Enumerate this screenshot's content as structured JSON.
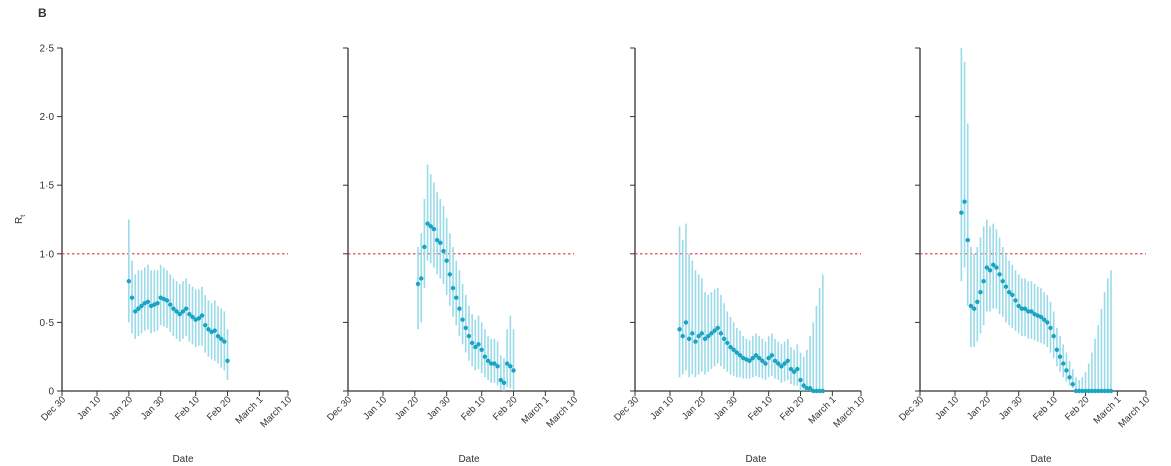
{
  "figure": {
    "panel_label": "B",
    "ylabel": "R",
    "ylabel_sub": "t",
    "xlabel": "Date",
    "colors": {
      "series": "#1aa3c2",
      "ci_band": "#99dbe8",
      "threshold": "#e2343a",
      "axis": "#333333"
    }
  },
  "chart_data": [
    {
      "type": "scatter",
      "ylim": [
        0,
        2.5
      ],
      "yticks": [
        0,
        0.5,
        1.0,
        1.5,
        2.0,
        2.5
      ],
      "ytick_labels": [
        "0",
        "0·5",
        "1·0",
        "1·5",
        "2·0",
        "2·5"
      ],
      "xticks": [
        "2019-12-30",
        "2020-01-10",
        "2020-01-20",
        "2020-01-30",
        "2020-02-10",
        "2020-02-20",
        "2020-03-01",
        "2020-03-10"
      ],
      "xtick_labels": [
        "Dec 30",
        "Jan 10",
        "Jan 20",
        "Jan 30",
        "Feb 10",
        "Feb 20",
        "March 1",
        "March 10"
      ],
      "reference_line": 1.0,
      "grid": false,
      "series": [
        {
          "x": [
            "2020-01-20",
            "2020-01-21",
            "2020-01-22",
            "2020-01-23",
            "2020-01-24",
            "2020-01-25",
            "2020-01-26",
            "2020-01-27",
            "2020-01-28",
            "2020-01-29",
            "2020-01-30",
            "2020-01-31",
            "2020-02-01",
            "2020-02-02",
            "2020-02-03",
            "2020-02-04",
            "2020-02-05",
            "2020-02-06",
            "2020-02-07",
            "2020-02-08",
            "2020-02-09",
            "2020-02-10",
            "2020-02-11",
            "2020-02-12",
            "2020-02-13",
            "2020-02-14",
            "2020-02-15",
            "2020-02-16",
            "2020-02-17",
            "2020-02-18",
            "2020-02-19",
            "2020-02-20"
          ],
          "y": [
            0.8,
            0.68,
            0.58,
            0.6,
            0.62,
            0.64,
            0.65,
            0.62,
            0.63,
            0.64,
            0.68,
            0.67,
            0.66,
            0.63,
            0.6,
            0.58,
            0.56,
            0.58,
            0.6,
            0.56,
            0.54,
            0.52,
            0.53,
            0.55,
            0.48,
            0.45,
            0.43,
            0.44,
            0.4,
            0.38,
            0.36,
            0.22
          ],
          "lower": [
            0.5,
            0.42,
            0.38,
            0.4,
            0.42,
            0.44,
            0.45,
            0.42,
            0.43,
            0.44,
            0.48,
            0.47,
            0.46,
            0.43,
            0.4,
            0.38,
            0.36,
            0.38,
            0.4,
            0.36,
            0.34,
            0.32,
            0.33,
            0.33,
            0.28,
            0.25,
            0.23,
            0.22,
            0.2,
            0.17,
            0.15,
            0.08
          ],
          "upper": [
            1.25,
            0.95,
            0.85,
            0.88,
            0.88,
            0.9,
            0.92,
            0.88,
            0.88,
            0.88,
            0.92,
            0.9,
            0.88,
            0.85,
            0.82,
            0.8,
            0.78,
            0.8,
            0.82,
            0.78,
            0.76,
            0.74,
            0.74,
            0.76,
            0.7,
            0.66,
            0.64,
            0.66,
            0.62,
            0.6,
            0.58,
            0.45
          ]
        }
      ]
    },
    {
      "type": "scatter",
      "ylim": [
        0,
        2.5
      ],
      "yticks": [
        0,
        0.5,
        1.0,
        1.5,
        2.0,
        2.5
      ],
      "xticks": [
        "2019-12-30",
        "2020-01-10",
        "2020-01-20",
        "2020-01-30",
        "2020-02-10",
        "2020-02-20",
        "2020-03-01",
        "2020-03-10"
      ],
      "xtick_labels": [
        "Dec 30",
        "Jan 10",
        "Jan 20",
        "Jan 30",
        "Feb 10",
        "Feb 20",
        "March 1",
        "March 10"
      ],
      "reference_line": 1.0,
      "grid": false,
      "series": [
        {
          "x": [
            "2020-01-21",
            "2020-01-22",
            "2020-01-23",
            "2020-01-24",
            "2020-01-25",
            "2020-01-26",
            "2020-01-27",
            "2020-01-28",
            "2020-01-29",
            "2020-01-30",
            "2020-01-31",
            "2020-02-01",
            "2020-02-02",
            "2020-02-03",
            "2020-02-04",
            "2020-02-05",
            "2020-02-06",
            "2020-02-07",
            "2020-02-08",
            "2020-02-09",
            "2020-02-10",
            "2020-02-11",
            "2020-02-12",
            "2020-02-13",
            "2020-02-14",
            "2020-02-15",
            "2020-02-16",
            "2020-02-17",
            "2020-02-18",
            "2020-02-19",
            "2020-02-20"
          ],
          "y": [
            0.78,
            0.82,
            1.05,
            1.22,
            1.2,
            1.18,
            1.1,
            1.08,
            1.02,
            0.95,
            0.85,
            0.75,
            0.68,
            0.6,
            0.52,
            0.46,
            0.4,
            0.35,
            0.32,
            0.34,
            0.3,
            0.25,
            0.22,
            0.2,
            0.2,
            0.18,
            0.08,
            0.06,
            0.2,
            0.18,
            0.15
          ],
          "lower": [
            0.45,
            0.5,
            0.75,
            0.95,
            0.93,
            0.9,
            0.85,
            0.82,
            0.78,
            0.7,
            0.62,
            0.54,
            0.48,
            0.4,
            0.34,
            0.28,
            0.22,
            0.18,
            0.15,
            0.16,
            0.13,
            0.1,
            0.08,
            0.06,
            0.06,
            0.04,
            0.01,
            0.0,
            0.03,
            0.02,
            0.01
          ],
          "upper": [
            1.05,
            1.15,
            1.4,
            1.65,
            1.58,
            1.52,
            1.45,
            1.4,
            1.35,
            1.26,
            1.15,
            1.05,
            0.95,
            0.88,
            0.78,
            0.7,
            0.62,
            0.56,
            0.52,
            0.55,
            0.5,
            0.45,
            0.4,
            0.38,
            0.38,
            0.36,
            0.26,
            0.24,
            0.45,
            0.55,
            0.45
          ]
        }
      ]
    },
    {
      "type": "scatter",
      "ylim": [
        0,
        2.5
      ],
      "yticks": [
        0,
        0.5,
        1.0,
        1.5,
        2.0,
        2.5
      ],
      "xticks": [
        "2019-12-30",
        "2020-01-10",
        "2020-01-20",
        "2020-01-30",
        "2020-02-10",
        "2020-02-20",
        "2020-03-01",
        "2020-03-10"
      ],
      "xtick_labels": [
        "Dec 30",
        "Jan 10",
        "Jan 20",
        "Jan 30",
        "Feb 10",
        "Feb 20",
        "March 1",
        "March 10"
      ],
      "reference_line": 1.0,
      "grid": false,
      "series": [
        {
          "x": [
            "2020-01-13",
            "2020-01-14",
            "2020-01-15",
            "2020-01-16",
            "2020-01-17",
            "2020-01-18",
            "2020-01-19",
            "2020-01-20",
            "2020-01-21",
            "2020-01-22",
            "2020-01-23",
            "2020-01-24",
            "2020-01-25",
            "2020-01-26",
            "2020-01-27",
            "2020-01-28",
            "2020-01-29",
            "2020-01-30",
            "2020-01-31",
            "2020-02-01",
            "2020-02-02",
            "2020-02-03",
            "2020-02-04",
            "2020-02-05",
            "2020-02-06",
            "2020-02-07",
            "2020-02-08",
            "2020-02-09",
            "2020-02-10",
            "2020-02-11",
            "2020-02-12",
            "2020-02-13",
            "2020-02-14",
            "2020-02-15",
            "2020-02-16",
            "2020-02-17",
            "2020-02-18",
            "2020-02-19",
            "2020-02-20",
            "2020-02-21",
            "2020-02-22",
            "2020-02-23",
            "2020-02-24",
            "2020-02-25",
            "2020-02-26",
            "2020-02-27"
          ],
          "y": [
            0.45,
            0.4,
            0.5,
            0.38,
            0.42,
            0.36,
            0.4,
            0.42,
            0.38,
            0.4,
            0.42,
            0.44,
            0.46,
            0.42,
            0.38,
            0.35,
            0.32,
            0.3,
            0.28,
            0.26,
            0.24,
            0.23,
            0.22,
            0.24,
            0.26,
            0.24,
            0.22,
            0.2,
            0.24,
            0.26,
            0.22,
            0.2,
            0.18,
            0.2,
            0.22,
            0.16,
            0.14,
            0.16,
            0.08,
            0.04,
            0.02,
            0.02,
            0.0,
            0.0,
            0.0,
            0.0
          ],
          "lower": [
            0.1,
            0.12,
            0.15,
            0.1,
            0.12,
            0.1,
            0.12,
            0.14,
            0.12,
            0.14,
            0.16,
            0.18,
            0.2,
            0.18,
            0.16,
            0.14,
            0.12,
            0.11,
            0.1,
            0.1,
            0.09,
            0.09,
            0.09,
            0.1,
            0.11,
            0.1,
            0.09,
            0.08,
            0.1,
            0.11,
            0.09,
            0.08,
            0.06,
            0.07,
            0.08,
            0.05,
            0.04,
            0.04,
            0.0,
            0.0,
            0.0,
            0.0,
            0.0,
            0.0,
            0.0,
            0.0
          ],
          "upper": [
            1.2,
            1.1,
            1.22,
            1.0,
            0.95,
            0.88,
            0.85,
            0.82,
            0.72,
            0.7,
            0.72,
            0.74,
            0.75,
            0.7,
            0.64,
            0.58,
            0.54,
            0.5,
            0.46,
            0.44,
            0.4,
            0.38,
            0.37,
            0.4,
            0.42,
            0.4,
            0.38,
            0.36,
            0.4,
            0.42,
            0.38,
            0.36,
            0.34,
            0.36,
            0.38,
            0.32,
            0.3,
            0.34,
            0.28,
            0.25,
            0.3,
            0.4,
            0.5,
            0.62,
            0.75,
            0.85
          ]
        }
      ]
    },
    {
      "type": "scatter",
      "ylim": [
        0,
        2.5
      ],
      "yticks": [
        0,
        0.5,
        1.0,
        1.5,
        2.0,
        2.5
      ],
      "xticks": [
        "2019-12-30",
        "2020-01-10",
        "2020-01-20",
        "2020-01-30",
        "2020-02-10",
        "2020-02-20",
        "2020-03-01",
        "2020-03-10"
      ],
      "xtick_labels": [
        "Dec 30",
        "Jan 10",
        "Jan 20",
        "Jan 30",
        "Feb 10",
        "Feb 20",
        "March 1",
        "March 10"
      ],
      "reference_line": 1.0,
      "grid": false,
      "series": [
        {
          "x": [
            "2020-01-12",
            "2020-01-13",
            "2020-01-14",
            "2020-01-15",
            "2020-01-16",
            "2020-01-17",
            "2020-01-18",
            "2020-01-19",
            "2020-01-20",
            "2020-01-21",
            "2020-01-22",
            "2020-01-23",
            "2020-01-24",
            "2020-01-25",
            "2020-01-26",
            "2020-01-27",
            "2020-01-28",
            "2020-01-29",
            "2020-01-30",
            "2020-01-31",
            "2020-02-01",
            "2020-02-02",
            "2020-02-03",
            "2020-02-04",
            "2020-02-05",
            "2020-02-06",
            "2020-02-07",
            "2020-02-08",
            "2020-02-09",
            "2020-02-10",
            "2020-02-11",
            "2020-02-12",
            "2020-02-13",
            "2020-02-14",
            "2020-02-15",
            "2020-02-16",
            "2020-02-17",
            "2020-02-18",
            "2020-02-19",
            "2020-02-20",
            "2020-02-21",
            "2020-02-22",
            "2020-02-23",
            "2020-02-24",
            "2020-02-25",
            "2020-02-26",
            "2020-02-27",
            "2020-02-28"
          ],
          "y": [
            1.3,
            1.38,
            1.1,
            0.62,
            0.6,
            0.65,
            0.72,
            0.8,
            0.9,
            0.88,
            0.92,
            0.9,
            0.85,
            0.8,
            0.76,
            0.72,
            0.7,
            0.66,
            0.62,
            0.6,
            0.6,
            0.58,
            0.58,
            0.56,
            0.55,
            0.54,
            0.52,
            0.5,
            0.46,
            0.4,
            0.3,
            0.25,
            0.2,
            0.15,
            0.1,
            0.05,
            0.0,
            0.0,
            0.0,
            0.0,
            0.0,
            0.0,
            0.0,
            0.0,
            0.0,
            0.0,
            0.0,
            0.0
          ],
          "lower": [
            0.8,
            0.9,
            0.62,
            0.32,
            0.32,
            0.36,
            0.42,
            0.48,
            0.58,
            0.58,
            0.6,
            0.6,
            0.56,
            0.54,
            0.5,
            0.48,
            0.46,
            0.44,
            0.42,
            0.4,
            0.4,
            0.38,
            0.38,
            0.37,
            0.36,
            0.35,
            0.34,
            0.32,
            0.28,
            0.24,
            0.18,
            0.14,
            0.1,
            0.07,
            0.04,
            0.02,
            0.0,
            0.0,
            0.0,
            0.0,
            0.0,
            0.0,
            0.0,
            0.0,
            0.0,
            0.0,
            0.0,
            0.0
          ],
          "upper": [
            2.5,
            2.4,
            1.95,
            1.05,
            1.0,
            1.05,
            1.12,
            1.2,
            1.25,
            1.2,
            1.22,
            1.18,
            1.12,
            1.05,
            1.0,
            0.95,
            0.92,
            0.88,
            0.85,
            0.82,
            0.82,
            0.8,
            0.8,
            0.78,
            0.76,
            0.75,
            0.72,
            0.7,
            0.65,
            0.58,
            0.46,
            0.4,
            0.34,
            0.28,
            0.22,
            0.16,
            0.1,
            0.08,
            0.1,
            0.14,
            0.2,
            0.28,
            0.38,
            0.48,
            0.6,
            0.72,
            0.82,
            0.88
          ]
        }
      ]
    }
  ]
}
